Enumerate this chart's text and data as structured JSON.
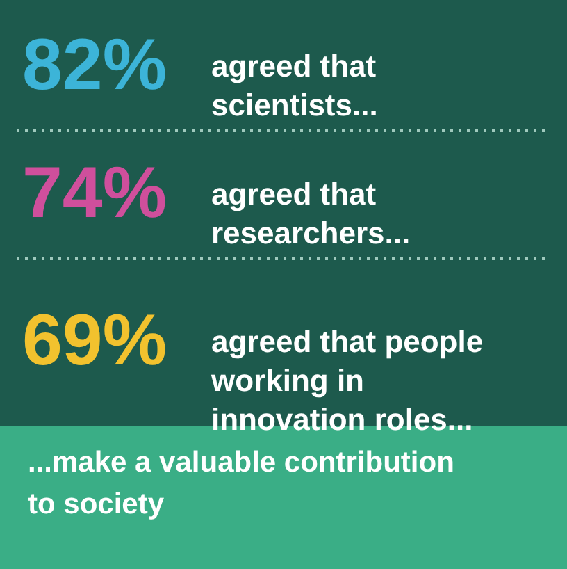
{
  "chart_data": {
    "type": "other",
    "categories": [
      "agreed that scientists...",
      "agreed that researchers...",
      "agreed that people working in innovation roles..."
    ],
    "values": [
      82,
      74,
      69
    ],
    "value_labels": [
      "82%",
      "74%",
      "69%"
    ],
    "colors": [
      "#3cb4d8",
      "#cf4f9c",
      "#f2c22e"
    ],
    "annotations": [
      "...make a valuable contribution to society"
    ]
  }
}
